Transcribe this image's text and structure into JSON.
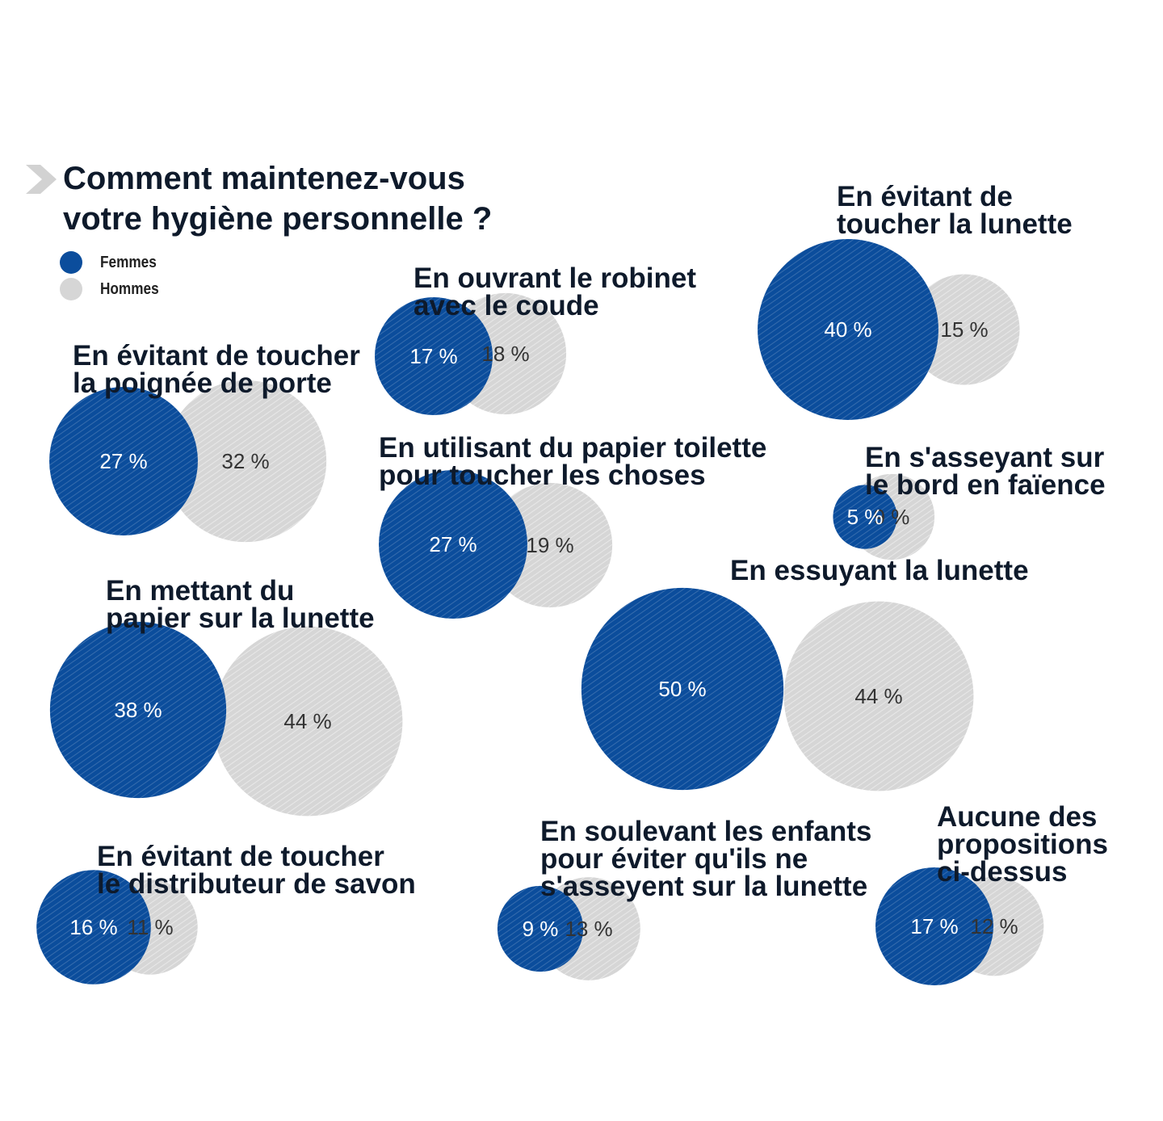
{
  "title": {
    "line1": "Comment maintenez-vous",
    "line2": "votre hygiène personnelle ?"
  },
  "colors": {
    "femmes": "#0b4d9c",
    "hommes": "#d6d6d6",
    "text": "#0e1a2b"
  },
  "legend": {
    "femmes": "Femmes",
    "hommes": "Hommes"
  },
  "chart_data": {
    "type": "bubble",
    "title": "Comment maintenez-vous votre hygiène personnelle ?",
    "unit": "%",
    "series": [
      "Femmes",
      "Hommes"
    ],
    "items": [
      {
        "lines": [
          "En ouvrant le robinet",
          "avec le coude"
        ],
        "femmes": 17,
        "hommes": 18,
        "femmes_label": "17 %",
        "hommes_label": "18 %"
      },
      {
        "lines": [
          "En évitant de",
          "toucher la lunette"
        ],
        "femmes": 40,
        "hommes": 15,
        "femmes_label": "40 %",
        "hommes_label": "15 %"
      },
      {
        "lines": [
          "En évitant de toucher",
          "la poignée de porte"
        ],
        "femmes": 27,
        "hommes": 32,
        "femmes_label": "27 %",
        "hommes_label": "32 %"
      },
      {
        "lines": [
          "En utilisant du papier toilette",
          "pour toucher les choses"
        ],
        "femmes": 27,
        "hommes": 19,
        "femmes_label": "27 %",
        "hommes_label": "19 %"
      },
      {
        "lines": [
          "En s'asseyant sur",
          "le bord en faïence"
        ],
        "femmes": 5,
        "hommes": 9,
        "femmes_label": "5 %",
        "hommes_label": "9 %"
      },
      {
        "lines": [
          "En mettant du",
          "papier sur la lunette"
        ],
        "femmes": 38,
        "hommes": 44,
        "femmes_label": "38 %",
        "hommes_label": "44 %"
      },
      {
        "lines": [
          "En essuyant la lunette"
        ],
        "femmes": 50,
        "hommes": 44,
        "femmes_label": "50 %",
        "hommes_label": "44 %"
      },
      {
        "lines": [
          "En évitant de toucher",
          "le distributeur de savon"
        ],
        "femmes": 16,
        "hommes": 11,
        "femmes_label": "16 %",
        "hommes_label": "11 %"
      },
      {
        "lines": [
          "En soulevant les enfants",
          "pour éviter qu'ils ne",
          "s'asseyent sur la lunette"
        ],
        "femmes": 9,
        "hommes": 13,
        "femmes_label": "9 %",
        "hommes_label": "13 %"
      },
      {
        "lines": [
          "Aucune des",
          "propositions",
          "ci-dessus"
        ],
        "femmes": 17,
        "hommes": 12,
        "femmes_label": "17 %",
        "hommes_label": "12 %"
      }
    ]
  }
}
